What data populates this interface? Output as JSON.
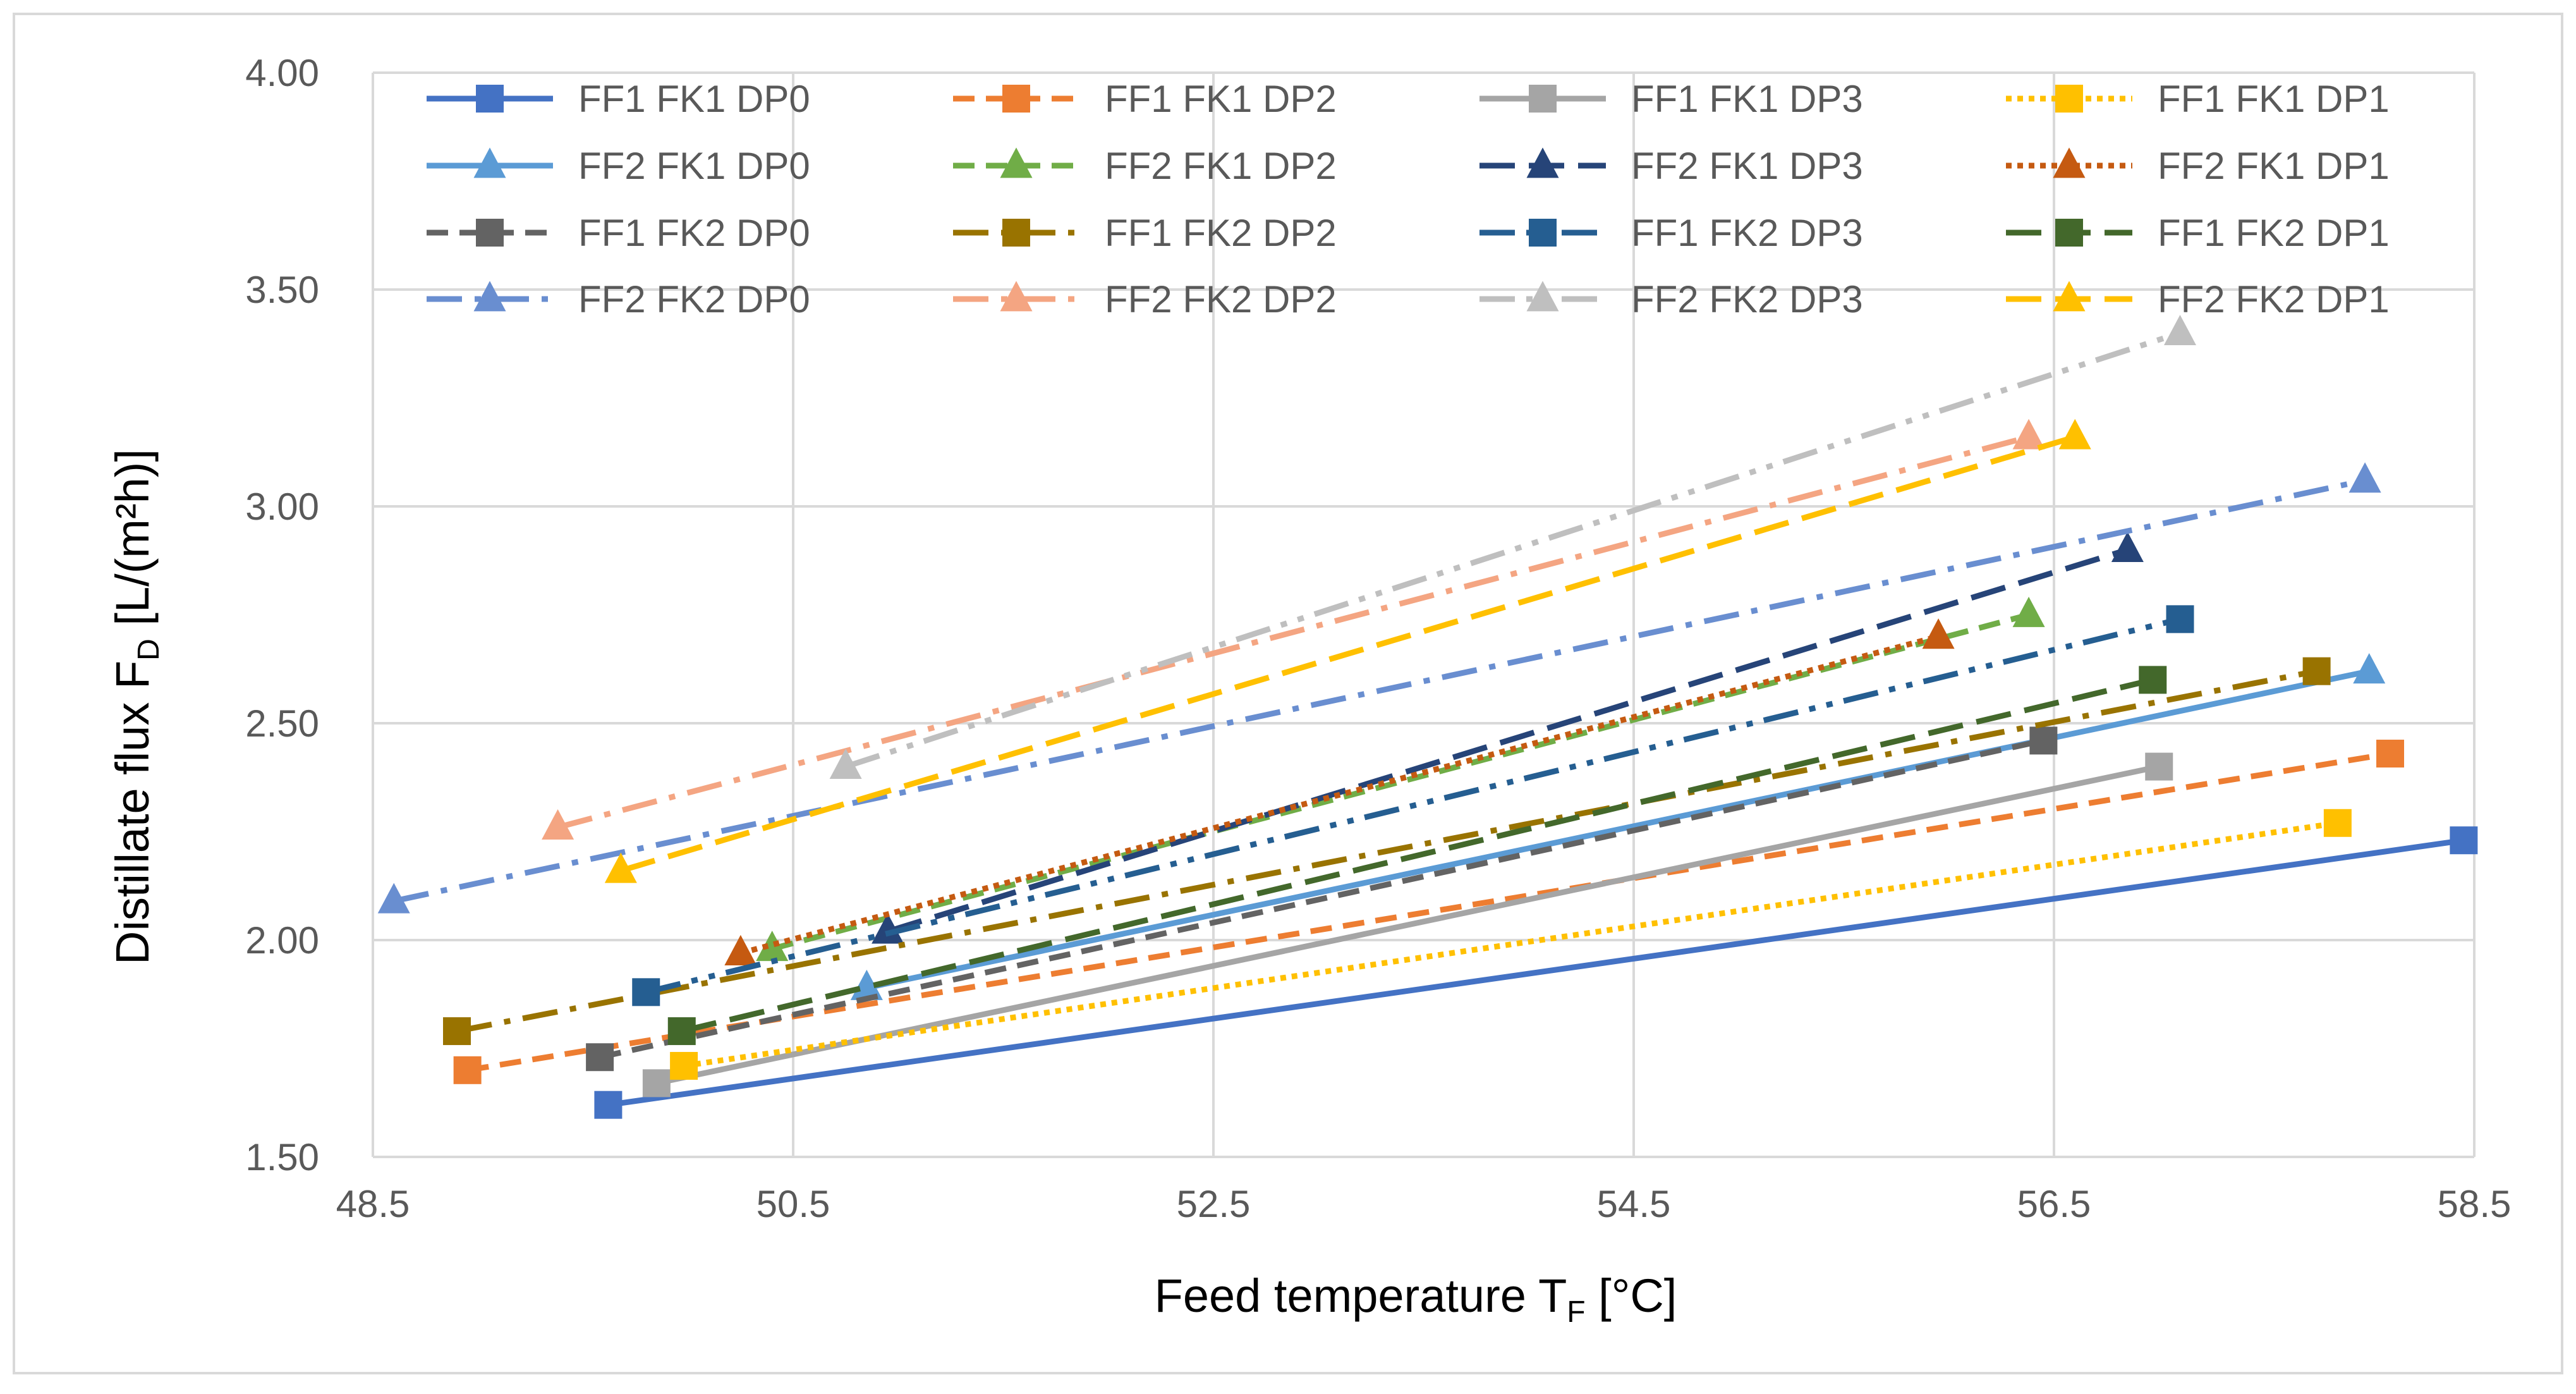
{
  "chart_data": {
    "type": "line",
    "title": "",
    "xlabel": {
      "main": "Feed temperature T",
      "sub": "F",
      "unit": " [°C]"
    },
    "ylabel": {
      "main": "Distillate flux F",
      "sub": "D",
      "unit": " [L/(m²h)]"
    },
    "xlim": [
      48.5,
      58.5
    ],
    "ylim": [
      1.5,
      4.0
    ],
    "xticks": [
      48.5,
      50.5,
      52.5,
      54.5,
      56.5,
      58.5
    ],
    "xtick_labels": [
      "48.5",
      "50.5",
      "52.5",
      "54.5",
      "56.5",
      "58.5"
    ],
    "yticks": [
      1.5,
      2.0,
      2.5,
      3.0,
      3.5,
      4.0
    ],
    "ytick_labels": [
      "1.50",
      "2.00",
      "2.50",
      "3.00",
      "3.50",
      "4.00"
    ],
    "grid": true,
    "legend_position": "top",
    "series": [
      {
        "name": "FF1 FK1 DP0",
        "color": "#4472C4",
        "marker": "square",
        "dash": "solid",
        "x": [
          49.62,
          58.45
        ],
        "y": [
          1.62,
          2.23
        ]
      },
      {
        "name": "FF1 FK1 DP2",
        "color": "#ED7D31",
        "marker": "square",
        "dash": "dash",
        "x": [
          48.95,
          58.1
        ],
        "y": [
          1.7,
          2.43
        ]
      },
      {
        "name": "FF1 FK1 DP3",
        "color": "#A5A5A5",
        "marker": "square",
        "dash": "solid",
        "x": [
          49.85,
          57.0
        ],
        "y": [
          1.67,
          2.4
        ]
      },
      {
        "name": "FF1 FK1 DP1",
        "color": "#FFC000",
        "marker": "square",
        "dash": "dot",
        "x": [
          49.98,
          57.85
        ],
        "y": [
          1.71,
          2.27
        ]
      },
      {
        "name": "FF2 FK1 DP0",
        "color": "#5B9BD5",
        "marker": "triangle",
        "dash": "solid",
        "x": [
          50.85,
          58.0
        ],
        "y": [
          1.89,
          2.62
        ]
      },
      {
        "name": "FF2 FK1 DP2",
        "color": "#70AD47",
        "marker": "triangle",
        "dash": "dash",
        "x": [
          50.4,
          56.38
        ],
        "y": [
          1.98,
          2.75
        ]
      },
      {
        "name": "FF2 FK1 DP3",
        "color": "#264478",
        "marker": "triangle",
        "dash": "longdash",
        "x": [
          50.95,
          56.85
        ],
        "y": [
          2.02,
          2.9
        ]
      },
      {
        "name": "FF2 FK1 DP1",
        "color": "#C55A11",
        "marker": "triangle",
        "dash": "dot",
        "x": [
          50.25,
          55.95
        ],
        "y": [
          1.97,
          2.7
        ]
      },
      {
        "name": "FF1 FK2 DP0",
        "color": "#636363",
        "marker": "square",
        "dash": "dash",
        "x": [
          49.58,
          56.45
        ],
        "y": [
          1.73,
          2.46
        ]
      },
      {
        "name": "FF1 FK2 DP2",
        "color": "#997300",
        "marker": "square",
        "dash": "longdashdot",
        "x": [
          48.9,
          57.75
        ],
        "y": [
          1.79,
          2.62
        ]
      },
      {
        "name": "FF1 FK2 DP3",
        "color": "#255E91",
        "marker": "square",
        "dash": "longdashdotdot",
        "x": [
          49.8,
          57.1
        ],
        "y": [
          1.88,
          2.74
        ]
      },
      {
        "name": "FF1 FK2 DP1",
        "color": "#43682B",
        "marker": "square",
        "dash": "longdash",
        "x": [
          49.97,
          56.97
        ],
        "y": [
          1.79,
          2.6
        ]
      },
      {
        "name": "FF2 FK2 DP0",
        "color": "#698ED0",
        "marker": "triangle",
        "dash": "longdashdot",
        "x": [
          48.6,
          57.98
        ],
        "y": [
          2.09,
          3.06
        ]
      },
      {
        "name": "FF2 FK2 DP2",
        "color": "#F4A582",
        "marker": "triangle",
        "dash": "longdashdot",
        "x": [
          49.38,
          56.38
        ],
        "y": [
          2.26,
          3.16
        ]
      },
      {
        "name": "FF2 FK2 DP3",
        "color": "#BFBFBF",
        "marker": "triangle",
        "dash": "longdashdotdot",
        "x": [
          50.75,
          57.1
        ],
        "y": [
          2.4,
          3.4
        ]
      },
      {
        "name": "FF2 FK2 DP1",
        "color": "#FFC000",
        "marker": "triangle",
        "dash": "longdash",
        "x": [
          49.68,
          56.6
        ],
        "y": [
          2.16,
          3.16
        ]
      }
    ]
  }
}
